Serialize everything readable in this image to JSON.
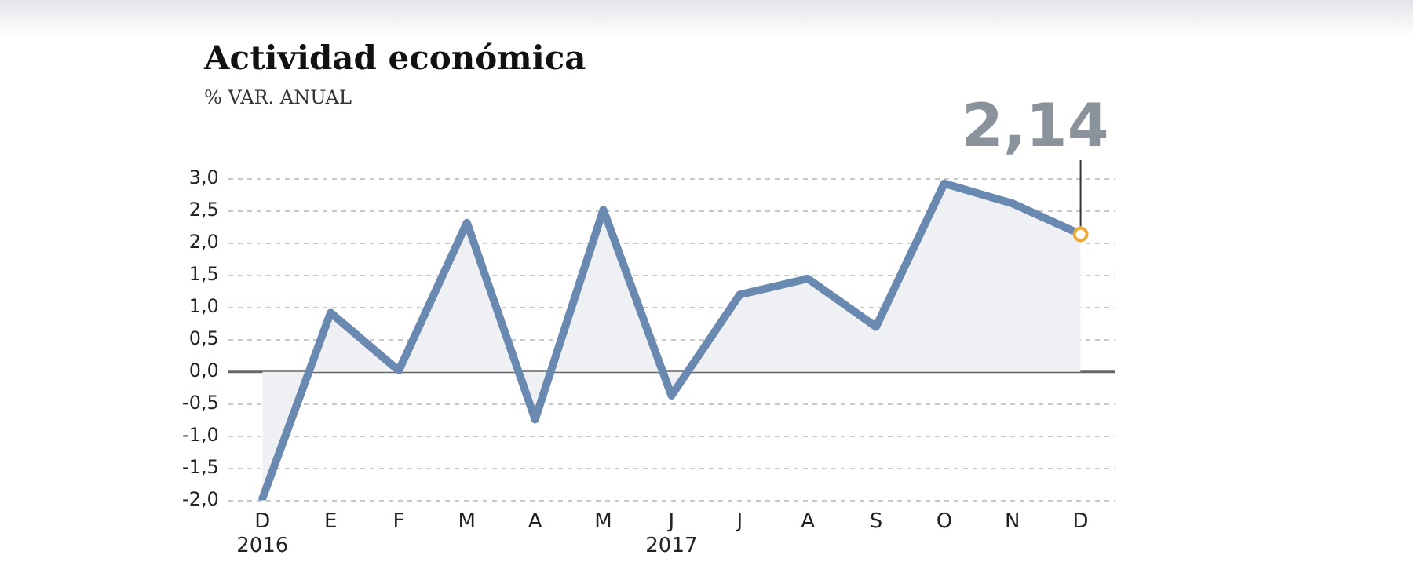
{
  "chart_data": {
    "type": "area",
    "title": "Actividad económica",
    "subtitle": "% VAR. ANUAL",
    "categories": [
      "D\n2016",
      "E",
      "F",
      "M",
      "A",
      "M",
      "J\n2017",
      "J",
      "A",
      "S",
      "O",
      "N",
      "D"
    ],
    "series": [
      {
        "color": "#6a89b0",
        "values": [
          -1.97,
          0.92,
          0.02,
          2.32,
          -0.74,
          2.52,
          -0.37,
          1.2,
          1.45,
          0.7,
          2.93,
          2.62,
          2.14
        ]
      }
    ],
    "ylim": [
      -2.0,
      3.0
    ],
    "yticks": [
      {
        "value": -2,
        "label": "-2,0"
      },
      {
        "value": -1.5,
        "label": "-1,5"
      },
      {
        "value": -1,
        "label": "-1,0"
      },
      {
        "value": -0.5,
        "label": "-0,5"
      },
      {
        "value": 0,
        "label": "0,0"
      },
      {
        "value": 0.5,
        "label": "0,5"
      },
      {
        "value": 1,
        "label": "1,0"
      },
      {
        "value": 1.5,
        "label": "1,5"
      },
      {
        "value": 2,
        "label": "2,0"
      },
      {
        "value": 2.5,
        "label": "2,5"
      },
      {
        "value": 3,
        "label": "3,0"
      }
    ],
    "grid": "y",
    "legend": false,
    "marker": "none",
    "annotations": [
      {
        "text": "2,14",
        "x": "D",
        "y": 2.14
      }
    ]
  }
}
